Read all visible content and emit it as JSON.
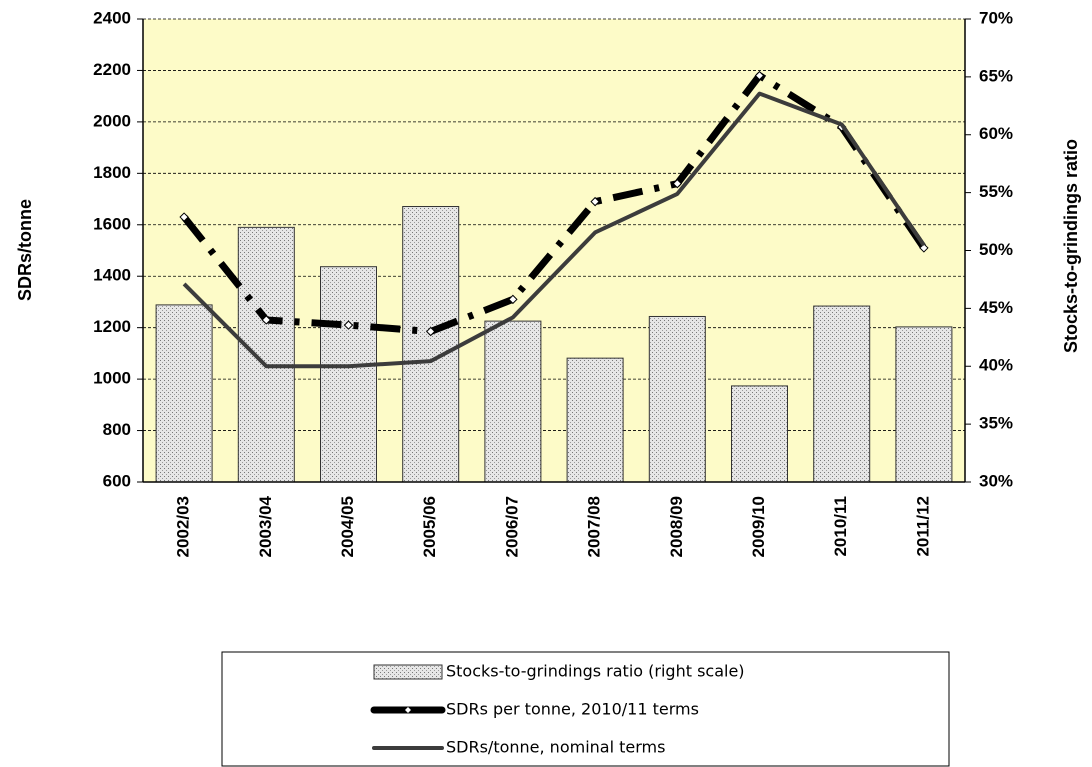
{
  "chart_data": {
    "type": "bar",
    "ylabel": "SDRs/tonne",
    "y2label": "Stocks-to-grindings ratio",
    "categories": [
      "2002/03",
      "2003/04",
      "2004/05",
      "2005/06",
      "2006/07",
      "2007/08",
      "2008/09",
      "2009/10",
      "2010/11",
      "2011/12"
    ],
    "series": [
      {
        "name": "Stocks-to-grindings ratio (right scale)",
        "type": "bar",
        "axis": "y2",
        "color": "#c8c8c8",
        "values": [
          45.3,
          52.0,
          48.6,
          53.8,
          43.9,
          40.7,
          44.3,
          38.3,
          45.2,
          43.4
        ]
      },
      {
        "name": "SDRs per tonne, 2010/11 terms",
        "type": "line",
        "style": "dashed",
        "markers": true,
        "color": "#000000",
        "values": [
          1630,
          1230,
          1210,
          1185,
          1310,
          1690,
          1760,
          2180,
          1980,
          1510
        ]
      },
      {
        "name": "SDRs/tonne, nominal terms",
        "type": "line",
        "style": "solid",
        "markers": false,
        "color": "#3c3c3c",
        "values": [
          1370,
          1050,
          1050,
          1070,
          1240,
          1570,
          1720,
          2110,
          1990,
          1520
        ]
      }
    ],
    "ylim": [
      600,
      2400
    ],
    "yticks": [
      600,
      800,
      1000,
      1200,
      1400,
      1600,
      1800,
      2000,
      2200,
      2400
    ],
    "y2lim": [
      30,
      70
    ],
    "y2ticks": [
      {
        "value": 30,
        "label": "30%"
      },
      {
        "value": 35,
        "label": "35%"
      },
      {
        "value": 40,
        "label": "40%"
      },
      {
        "value": 45,
        "label": "45%"
      },
      {
        "value": 50,
        "label": "50%"
      },
      {
        "value": 55,
        "label": "55%"
      },
      {
        "value": 60,
        "label": "60%"
      },
      {
        "value": 65,
        "label": "65%"
      },
      {
        "value": 70,
        "label": "70%"
      }
    ],
    "grid": true,
    "legend": "bottom",
    "background": "#fdfbc8"
  }
}
